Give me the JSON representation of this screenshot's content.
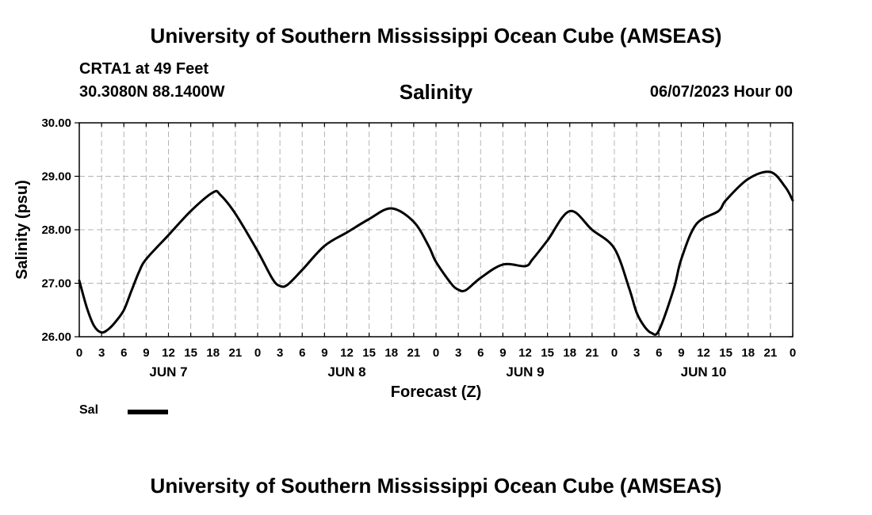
{
  "header": {
    "title": "University of Southern Mississippi Ocean Cube (AMSEAS)",
    "station": "CRTA1 at 49 Feet",
    "coordinates": "30.3080N  88.1400W",
    "datetime": "06/07/2023 Hour 00"
  },
  "footer": {
    "title": "University of Southern Mississippi Ocean Cube (AMSEAS)"
  },
  "legend": {
    "series_label": "Sal"
  },
  "chart_data": {
    "type": "line",
    "title": "Salinity",
    "xlabel": "Forecast (Z)",
    "ylabel": "Salinity (psu)",
    "xlim": [
      0,
      96
    ],
    "ylim": [
      26.0,
      30.0
    ],
    "grid": true,
    "yticks": [
      "26.00",
      "27.00",
      "28.00",
      "29.00",
      "30.00"
    ],
    "xtick_hours": [
      0,
      3,
      6,
      9,
      12,
      15,
      18,
      21,
      24,
      27,
      30,
      33,
      36,
      39,
      42,
      45,
      48,
      51,
      54,
      57,
      60,
      63,
      66,
      69,
      72,
      75,
      78,
      81,
      84,
      87,
      90,
      93,
      96
    ],
    "xtick_labels": [
      "0",
      "3",
      "6",
      "9",
      "12",
      "15",
      "18",
      "21",
      "0",
      "3",
      "6",
      "9",
      "12",
      "15",
      "18",
      "21",
      "0",
      "3",
      "6",
      "9",
      "12",
      "15",
      "18",
      "21",
      "0",
      "3",
      "6",
      "9",
      "12",
      "15",
      "18",
      "21",
      "0"
    ],
    "day_labels": [
      {
        "hour": 12,
        "label": "JUN 7"
      },
      {
        "hour": 36,
        "label": "JUN 8"
      },
      {
        "hour": 60,
        "label": "JUN 9"
      },
      {
        "hour": 84,
        "label": "JUN 10"
      }
    ],
    "series": [
      {
        "name": "Sal",
        "color": "#000000",
        "x": [
          0,
          1,
          2,
          3,
          4,
          5,
          6,
          7,
          8,
          9,
          12,
          15,
          18,
          19,
          21,
          24,
          26,
          27,
          28,
          30,
          33,
          36,
          39,
          42,
          45,
          47,
          48,
          50,
          51,
          52,
          54,
          57,
          60,
          61,
          63,
          66,
          69,
          72,
          74,
          75,
          76,
          77,
          78,
          80,
          81,
          83,
          86,
          87,
          90,
          93,
          95,
          96
        ],
        "y": [
          27.05,
          26.55,
          26.2,
          26.08,
          26.15,
          26.3,
          26.5,
          26.85,
          27.2,
          27.45,
          27.9,
          28.35,
          28.7,
          28.65,
          28.3,
          27.6,
          27.08,
          26.95,
          26.97,
          27.25,
          27.7,
          27.95,
          28.2,
          28.4,
          28.15,
          27.7,
          27.4,
          27.0,
          26.88,
          26.87,
          27.1,
          27.35,
          27.32,
          27.45,
          27.8,
          28.35,
          28.0,
          27.65,
          26.9,
          26.45,
          26.2,
          26.07,
          26.12,
          26.9,
          27.45,
          28.1,
          28.35,
          28.55,
          28.95,
          29.08,
          28.8,
          28.55
        ]
      }
    ]
  }
}
